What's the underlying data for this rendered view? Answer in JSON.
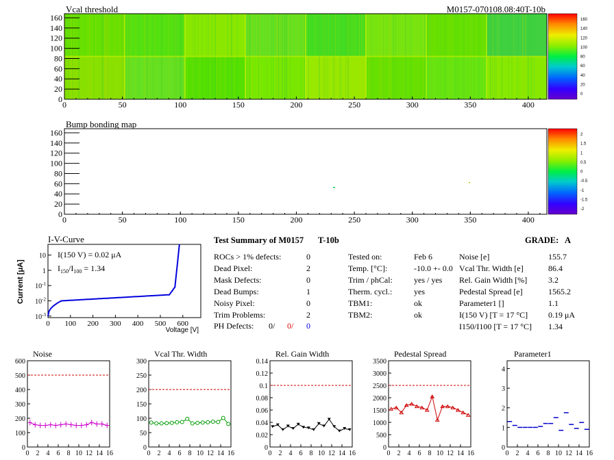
{
  "maps": {
    "vcal": {
      "title": "Vcal threshold",
      "module_id": "M0157-070108.08:40T-10b",
      "y_ticks": [
        0,
        20,
        40,
        60,
        80,
        100,
        120,
        140,
        160
      ],
      "x_ticks": [
        0,
        50,
        100,
        150,
        200,
        250,
        300,
        350,
        400
      ],
      "colorbar_ticks": [
        "160",
        "140",
        "120",
        "100",
        "80",
        "60",
        "40",
        "20",
        "0"
      ]
    },
    "bump": {
      "title": "Bump bonding map",
      "y_ticks": [
        0,
        20,
        40,
        60,
        80,
        100,
        120,
        140,
        160
      ],
      "x_ticks": [
        0,
        50,
        100,
        150,
        200,
        250,
        300,
        350,
        400
      ],
      "colorbar_ticks": [
        "2",
        "1.5",
        "1",
        "0.5",
        "0",
        "-0.5",
        "-1",
        "-1.5",
        "-2"
      ]
    }
  },
  "iv": {
    "title": "I-V-Curve",
    "annotation_current": "I(150 V) = 0.02 μA",
    "annotation_ratio": "1.34",
    "ylabel": "Current [μA]",
    "xlabel": "Voltage [V]",
    "x_ticks": [
      0,
      100,
      200,
      300,
      400,
      500,
      600
    ],
    "y_ticks": [
      "10^{-3}",
      "10^{-2}",
      "10^{-1}",
      "1",
      "10"
    ]
  },
  "summary": {
    "title": "Test Summary of M0157",
    "subtitle": "T-10b",
    "grade_label": "GRADE:",
    "grade": "A",
    "left_rows": [
      {
        "label": "ROCs > 1% defects:",
        "value": "0"
      },
      {
        "label": "Dead Pixel:",
        "value": "2"
      },
      {
        "label": "Mask Defects:",
        "value": "0"
      },
      {
        "label": "Dead Bumps:",
        "value": "1"
      },
      {
        "label": "Noisy Pixel:",
        "value": "0"
      },
      {
        "label": "Trim Problems:",
        "value": "2"
      }
    ],
    "ph_defects_label": "PH Defects:",
    "ph_defects": [
      "0/",
      "0/",
      "0"
    ],
    "middle_rows": [
      {
        "label": "Tested on:",
        "value": "Feb 6"
      },
      {
        "label": "Temp. [°C]:",
        "value": "-10.0 +- 0.0"
      },
      {
        "label": "Trim / phCal:",
        "value": "yes / yes"
      },
      {
        "label": "Therm. cycl.:",
        "value": "yes"
      },
      {
        "label": "TBM1:",
        "value": "ok"
      },
      {
        "label": "TBM2:",
        "value": "ok"
      }
    ],
    "right_rows": [
      {
        "label": "Noise [e]",
        "value": "155.7"
      },
      {
        "label": "Vcal Thr. Width [e]",
        "value": "86.4"
      },
      {
        "label": "Rel. Gain Width [%]",
        "value": "3.2"
      },
      {
        "label": "Pedestal Spread [e]",
        "value": "1565.2"
      },
      {
        "label": "Parameter1 []",
        "value": "1.1"
      },
      {
        "label": "I(150 V) [T = 17 °C]",
        "value": "0.19 μA"
      },
      {
        "label": "I150/I100 [T = 17 °C]",
        "value": "1.34"
      }
    ]
  },
  "chart_data": [
    {
      "type": "line",
      "title": "Noise",
      "x": [
        0,
        1,
        2,
        3,
        4,
        5,
        6,
        7,
        8,
        9,
        10,
        11,
        12,
        13,
        14,
        15
      ],
      "values": [
        170,
        155,
        150,
        150,
        155,
        150,
        155,
        160,
        155,
        150,
        150,
        155,
        170,
        160,
        160,
        150
      ],
      "ylim": [
        0,
        600
      ],
      "xlim": [
        0,
        16
      ],
      "y_ticks": [
        0,
        100,
        200,
        300,
        400,
        500,
        600
      ],
      "x_ticks": [
        0,
        2,
        4,
        6,
        8,
        10,
        12,
        14,
        16
      ],
      "threshold": 500,
      "color": "#cc00cc",
      "marker": "plus"
    },
    {
      "type": "line",
      "title": "Vcal Thr. Width",
      "x": [
        0,
        1,
        2,
        3,
        4,
        5,
        6,
        7,
        8,
        9,
        10,
        11,
        12,
        13,
        14,
        15
      ],
      "values": [
        85,
        82,
        82,
        83,
        84,
        86,
        87,
        98,
        82,
        84,
        85,
        86,
        88,
        87,
        101,
        80
      ],
      "ylim": [
        0,
        300
      ],
      "xlim": [
        0,
        16
      ],
      "y_ticks": [
        0,
        50,
        100,
        150,
        200,
        250,
        300
      ],
      "x_ticks": [
        0,
        2,
        4,
        6,
        8,
        10,
        12,
        14,
        16
      ],
      "threshold": 200,
      "color": "#009900",
      "marker": "circle"
    },
    {
      "type": "line",
      "title": "Rel. Gain Width",
      "x": [
        0,
        1,
        2,
        3,
        4,
        5,
        6,
        7,
        8,
        9,
        10,
        11,
        12,
        13,
        14,
        15
      ],
      "values": [
        0.033,
        0.036,
        0.028,
        0.034,
        0.03,
        0.037,
        0.032,
        0.031,
        0.028,
        0.038,
        0.034,
        0.045,
        0.033,
        0.026,
        0.03,
        0.028
      ],
      "ylim": [
        0,
        0.14
      ],
      "xlim": [
        0,
        16
      ],
      "y_ticks": [
        0,
        0.02,
        0.04,
        0.06,
        0.08,
        0.1,
        0.12,
        0.14
      ],
      "x_ticks": [
        0,
        2,
        4,
        6,
        8,
        10,
        12,
        14,
        16
      ],
      "threshold": 0.1,
      "color": "#000000",
      "marker": "triangle"
    },
    {
      "type": "line",
      "title": "Pedestal Spread",
      "x": [
        0,
        1,
        2,
        3,
        4,
        5,
        6,
        7,
        8,
        9,
        10,
        11,
        12,
        13,
        14,
        15
      ],
      "values": [
        1550,
        1600,
        1400,
        1700,
        1750,
        1650,
        1600,
        1500,
        2050,
        1100,
        1650,
        1650,
        1600,
        1500,
        1400,
        1300
      ],
      "ylim": [
        0,
        3500
      ],
      "xlim": [
        0,
        16
      ],
      "y_ticks": [
        0,
        500,
        1000,
        1500,
        2000,
        2500,
        3000,
        3500
      ],
      "x_ticks": [
        0,
        2,
        4,
        6,
        8,
        10,
        12,
        14,
        16
      ],
      "threshold": 2500,
      "color": "#cc0000",
      "marker": "triangle-up"
    },
    {
      "type": "scatter",
      "title": "Parameter1",
      "x": [
        0,
        1,
        2,
        3,
        4,
        5,
        6,
        7,
        8,
        9,
        10,
        11,
        12,
        13,
        14,
        15
      ],
      "values": [
        1.3,
        1.1,
        1.0,
        1.0,
        1.0,
        1.0,
        1.05,
        1.2,
        1.2,
        1.5,
        0.85,
        1.75,
        1.15,
        0.95,
        1.25,
        0.9
      ],
      "ylim": [
        0,
        4.4
      ],
      "xlim": [
        0,
        16
      ],
      "y_ticks": [
        0,
        1,
        2,
        3,
        4
      ],
      "x_ticks": [
        0,
        2,
        4,
        6,
        8,
        10,
        12,
        14,
        16
      ],
      "threshold": null,
      "color": "#0000cc",
      "marker": "dash"
    }
  ]
}
